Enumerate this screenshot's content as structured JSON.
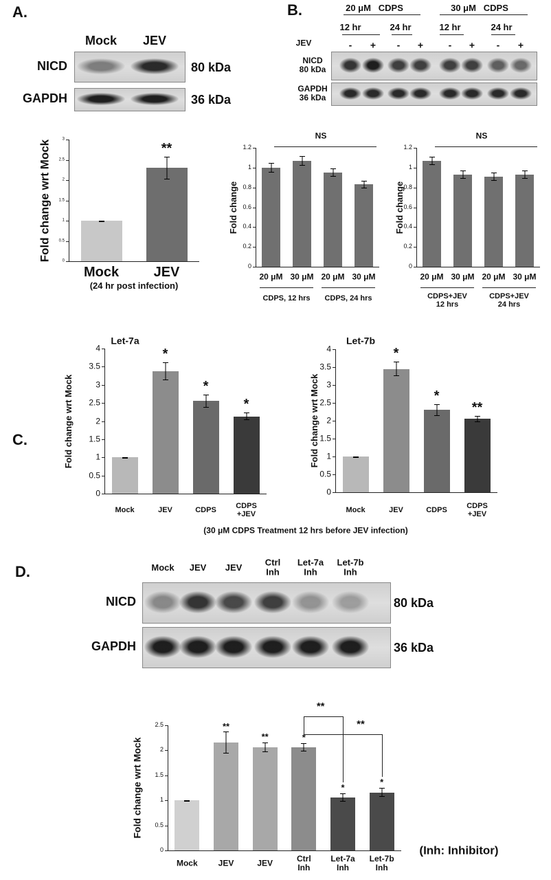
{
  "panels": [
    "A.",
    "B.",
    "C.",
    "D."
  ],
  "blots": [
    {
      "lanes": [
        "Mock",
        "JEV"
      ],
      "rows": [
        {
          "label": "NICD",
          "size": "80 kDa"
        },
        {
          "label": "GAPDH",
          "size": "36 kDa"
        }
      ]
    },
    {
      "treatments": [
        "20 μM   CDPS",
        "30 μM   CDPS"
      ],
      "times": [
        "12 hr",
        "24 hr",
        "12 hr",
        "24 hr"
      ],
      "jev": "JEV",
      "lanes": [
        "-",
        "+",
        "-",
        "+",
        "-",
        "+",
        "-",
        "+"
      ],
      "rows": [
        {
          "label": "NICD\n80 kDa"
        },
        {
          "label": "GAPDH\n36 kDa"
        }
      ]
    },
    {
      "lanes": [
        "Mock",
        "JEV",
        "JEV",
        "Ctrl\nInh",
        "Let-7a\nInh",
        "Let-7b\nInh"
      ],
      "rows": [
        {
          "label": "NICD",
          "size": "80 kDa"
        },
        {
          "label": "GAPDH",
          "size": "36 kDa"
        }
      ]
    }
  ],
  "panel_c_caption": "(30 μM CDPS Treatment 12 hrs before JEV infection)",
  "chart_data": [
    {
      "type": "bar",
      "ylabel": "Fold change wrt Mock",
      "categories": [
        "Mock",
        "JEV"
      ],
      "values": [
        1,
        2.3
      ],
      "errors": [
        0,
        0.28
      ],
      "annotations": [
        null,
        "**"
      ],
      "colors": [
        "#c8c8c8",
        "#6e6e6e"
      ],
      "ylim": [
        0,
        3
      ],
      "yticks": [
        0,
        0.5,
        1,
        1.5,
        2,
        2.5,
        3
      ],
      "note": "(24 hr post infection)"
    },
    {
      "type": "bar",
      "ylabel": "Fold change",
      "categories": [
        "20 μM",
        "30 μM",
        "20 μM",
        "30 μM"
      ],
      "groups": [
        "CDPS, 12 hrs",
        "CDPS, 24 hrs"
      ],
      "values": [
        1.0,
        1.07,
        0.95,
        0.83
      ],
      "errors": [
        0.05,
        0.05,
        0.04,
        0.04
      ],
      "colors": [
        "#707070",
        "#707070",
        "#707070",
        "#707070"
      ],
      "ylim": [
        0,
        1.2
      ],
      "yticks": [
        0,
        0.2,
        0.4,
        0.6,
        0.8,
        1,
        1.2
      ],
      "significance": "NS"
    },
    {
      "type": "bar",
      "ylabel": "Fold change",
      "categories": [
        "20 μM",
        "30 μM",
        "20 μM",
        "30 μM"
      ],
      "groups": [
        "CDPS+JEV\n12 hrs",
        "CDPS+JEV\n24 hrs"
      ],
      "values": [
        1.07,
        0.93,
        0.91,
        0.93
      ],
      "errors": [
        0.04,
        0.04,
        0.04,
        0.04
      ],
      "colors": [
        "#707070",
        "#707070",
        "#707070",
        "#707070"
      ],
      "ylim": [
        0,
        1.2
      ],
      "yticks": [
        0,
        0.2,
        0.4,
        0.6,
        0.8,
        1,
        1.2
      ],
      "significance": "NS"
    },
    {
      "type": "bar",
      "title": "Let-7a",
      "ylabel": "Fold change wrt Mock",
      "categories": [
        "Mock",
        "JEV",
        "CDPS",
        "CDPS\n+JEV"
      ],
      "values": [
        1,
        3.37,
        2.55,
        2.13
      ],
      "errors": [
        0,
        0.25,
        0.18,
        0.1
      ],
      "annotations": [
        null,
        "*",
        "*",
        "*"
      ],
      "colors": [
        "#b8b8b8",
        "#8c8c8c",
        "#6a6a6a",
        "#3a3a3a"
      ],
      "ylim": [
        0,
        4
      ],
      "yticks": [
        0,
        0.5,
        1,
        1.5,
        2,
        2.5,
        3,
        3.5,
        4
      ]
    },
    {
      "type": "bar",
      "title": "Let-7b",
      "ylabel": "Fold change wrt Mock",
      "categories": [
        "Mock",
        "JEV",
        "CDPS",
        "CDPS\n+JEV"
      ],
      "values": [
        1,
        3.45,
        2.3,
        2.05
      ],
      "errors": [
        0,
        0.2,
        0.17,
        0.08
      ],
      "annotations": [
        null,
        "*",
        "*",
        "**"
      ],
      "colors": [
        "#b8b8b8",
        "#8c8c8c",
        "#6a6a6a",
        "#3a3a3a"
      ],
      "ylim": [
        0,
        4
      ],
      "yticks": [
        0,
        0.5,
        1,
        1.5,
        2,
        2.5,
        3,
        3.5,
        4
      ]
    },
    {
      "type": "bar",
      "ylabel": "Fold change wrt Mock",
      "categories": [
        "Mock",
        "JEV",
        "JEV",
        "Ctrl\nInh",
        "Let-7a\nInh",
        "Let-7b\nInh"
      ],
      "values": [
        1,
        2.15,
        2.06,
        2.06,
        1.06,
        1.16
      ],
      "errors": [
        0,
        0.22,
        0.1,
        0.08,
        0.08,
        0.09
      ],
      "annotations": [
        null,
        "**",
        "**",
        "*",
        "*",
        "*"
      ],
      "comparisons": [
        "**",
        "**"
      ],
      "colors": [
        "#d0d0d0",
        "#a8a8a8",
        "#a8a8a8",
        "#8c8c8c",
        "#4a4a4a",
        "#4a4a4a"
      ],
      "ylim": [
        0,
        2.5
      ],
      "yticks": [
        0,
        0.5,
        1,
        1.5,
        2,
        2.5
      ],
      "note": "(Inh: Inhibitor)"
    }
  ]
}
